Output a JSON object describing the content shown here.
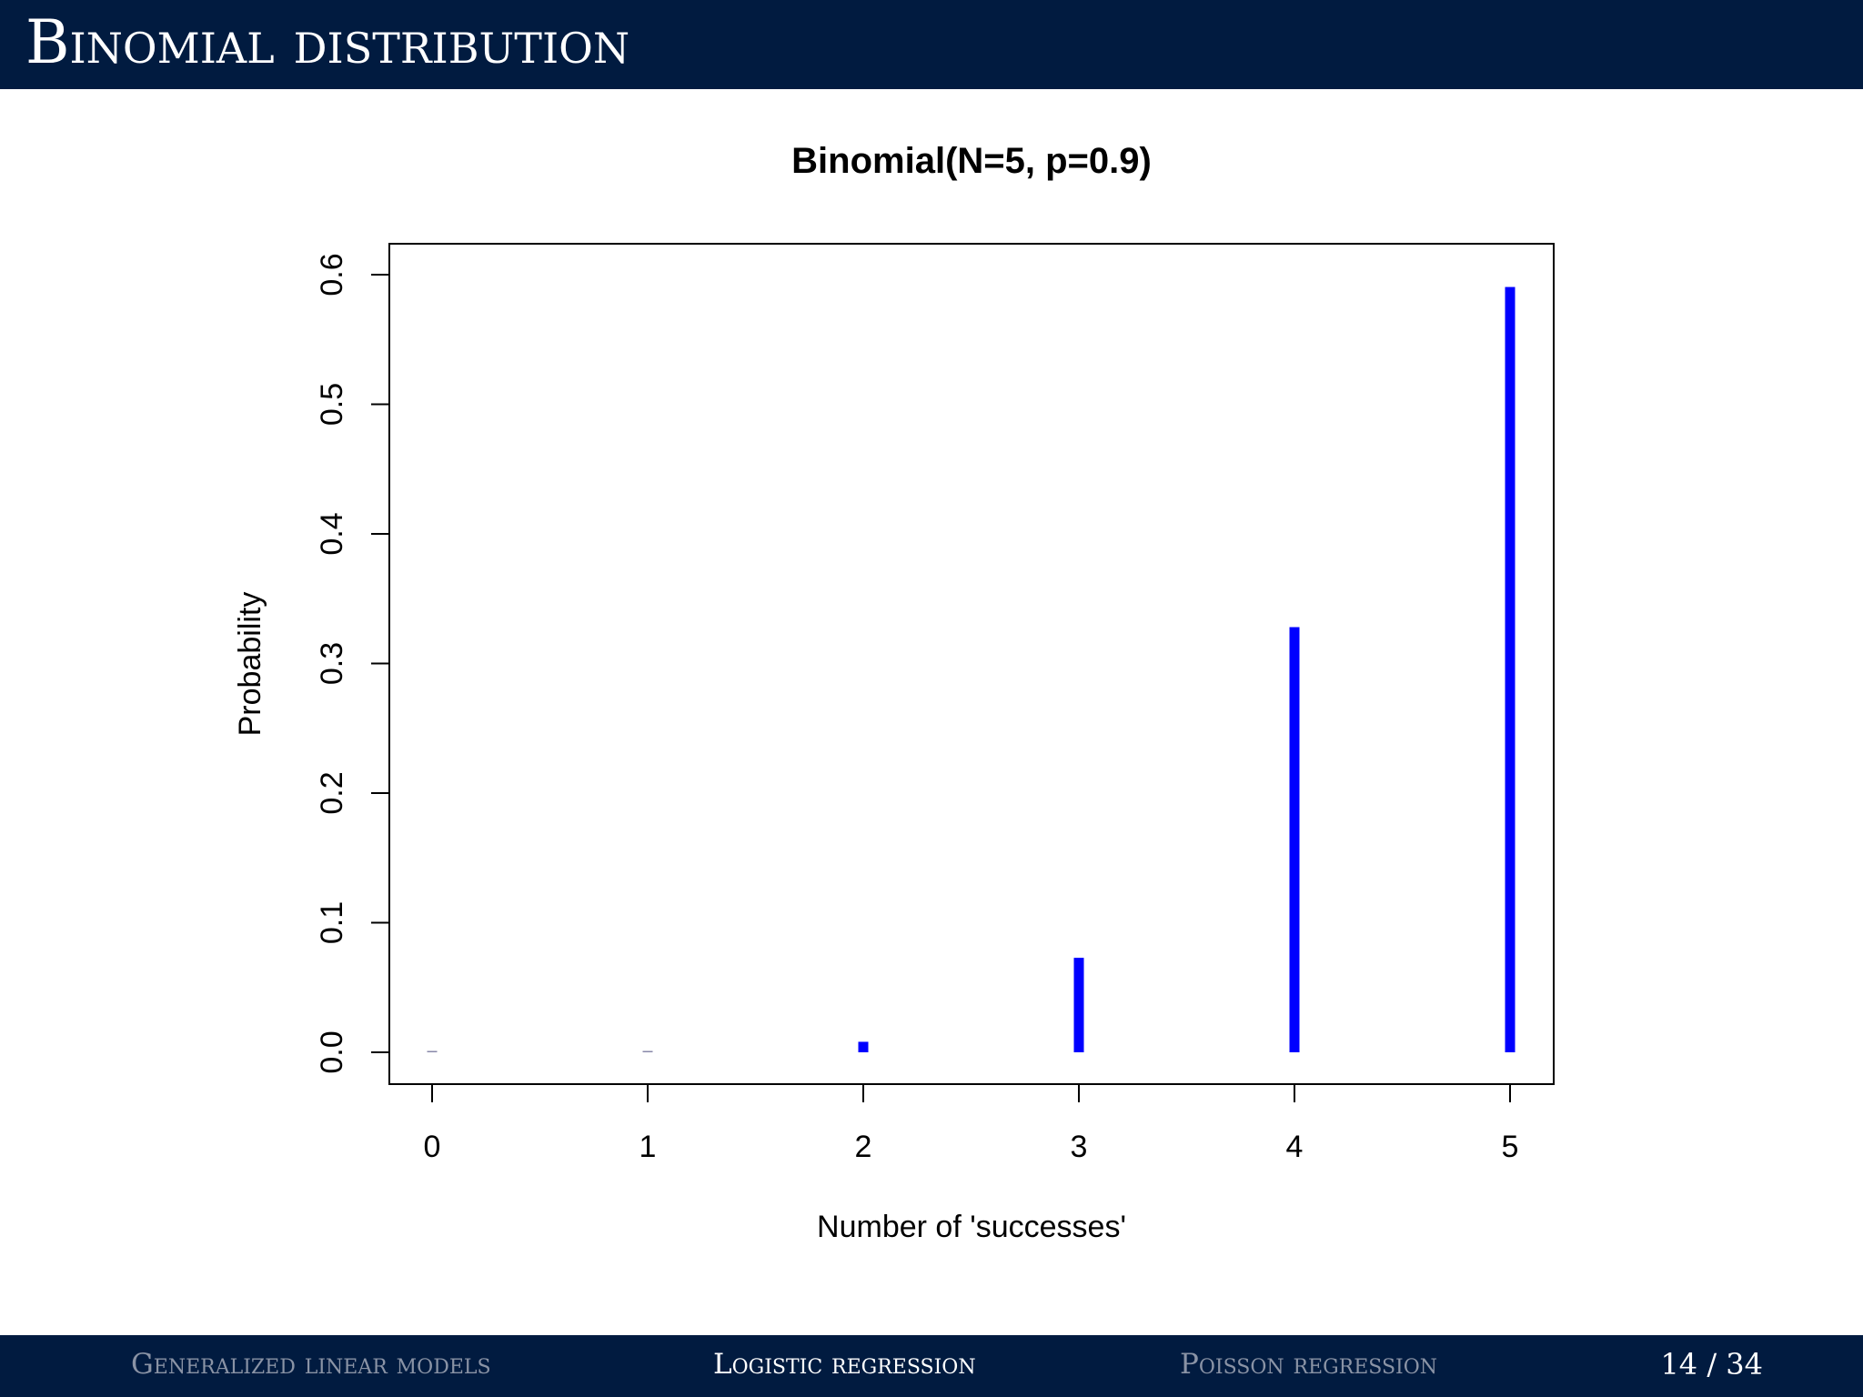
{
  "slide": {
    "title": "Binomial distribution"
  },
  "footer": {
    "nav": [
      {
        "label": "Generalized linear models",
        "active": false
      },
      {
        "label": "Logistic regression",
        "active": true
      },
      {
        "label": "Poisson regression",
        "active": false
      }
    ],
    "page_number": "14 / 34"
  },
  "chart_data": {
    "type": "bar",
    "title": "Binomial(N=5, p=0.9)",
    "xlabel": "Number of 'successes'",
    "ylabel": "Probability",
    "x": [
      0,
      1,
      2,
      3,
      4,
      5
    ],
    "values": [
      1e-05,
      0.00045,
      0.0081,
      0.0729,
      0.32805,
      0.59049
    ],
    "xlim": [
      0,
      5
    ],
    "ylim": [
      0,
      0.6
    ],
    "x_ticks": [
      "0",
      "1",
      "2",
      "3",
      "4",
      "5"
    ],
    "y_ticks": [
      "0.0",
      "0.1",
      "0.2",
      "0.3",
      "0.4",
      "0.5",
      "0.6"
    ],
    "grid": false,
    "bar_color": "#0000ff"
  }
}
